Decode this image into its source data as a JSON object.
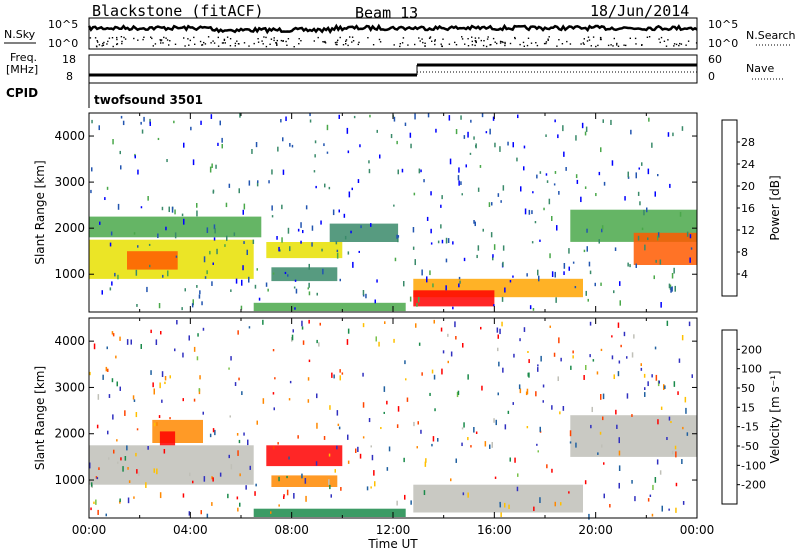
{
  "header": {
    "station": "Blackstone (fitACF)",
    "beam": "Beam 13",
    "date": "18/Jun/2014"
  },
  "noise_panel": {
    "left_label": "N.Sky",
    "right_label": "N.Search",
    "left_ticks": [
      "10^5",
      "10^0"
    ],
    "right_ticks": [
      "10^5",
      "10^0"
    ]
  },
  "freq_panel": {
    "left_label_line1": "Freq.",
    "left_label_line2": "[MHz]",
    "left_ticks": [
      "18",
      "8"
    ],
    "right_label": "Nave",
    "right_ticks": [
      "60",
      "0"
    ]
  },
  "cpid_panel": {
    "label": "CPID",
    "program": "twofsound 3501"
  },
  "colors": {
    "power_scale": [
      "#0000ff",
      "#2255b0",
      "#3a8a6a",
      "#4aa84a",
      "#e8e000",
      "#ffa500",
      "#ff5a00",
      "#ff0000"
    ],
    "velocity_scale": [
      "#3030c0",
      "#2060a0",
      "#1a8a4a",
      "#7ac24a",
      "#c0c0b8",
      "#ffc000",
      "#ff8800",
      "#ff4400",
      "#ff0000"
    ]
  },
  "chart_data": [
    {
      "type": "heatmap",
      "name": "power",
      "xlabel": "Time UT",
      "ylabel": "Slant Range [km]",
      "xlim": [
        0,
        24
      ],
      "ylim": [
        180,
        4500
      ],
      "y_ticks": [
        "1000",
        "2000",
        "3000",
        "4000"
      ],
      "colorbar_label": "Power [dB]",
      "colorbar_ticks": [
        "4",
        "8",
        "12",
        "16",
        "20",
        "24",
        "28"
      ],
      "bands": [
        {
          "t0": 0.0,
          "t1": 6.5,
          "r0": 900,
          "r1": 1750,
          "v": 16
        },
        {
          "t0": 1.5,
          "t1": 3.5,
          "r0": 1100,
          "r1": 1500,
          "v": 26
        },
        {
          "t0": 0.0,
          "t1": 6.8,
          "r0": 1800,
          "r1": 2250,
          "v": 12
        },
        {
          "t0": 7.0,
          "t1": 10.0,
          "r0": 1350,
          "r1": 1700,
          "v": 16
        },
        {
          "t0": 7.2,
          "t1": 9.8,
          "r0": 850,
          "r1": 1150,
          "v": 8
        },
        {
          "t0": 9.5,
          "t1": 12.2,
          "r0": 1700,
          "r1": 2100,
          "v": 10
        },
        {
          "t0": 12.8,
          "t1": 19.5,
          "r0": 500,
          "r1": 900,
          "v": 20
        },
        {
          "t0": 12.8,
          "t1": 16.0,
          "r0": 300,
          "r1": 650,
          "v": 28
        },
        {
          "t0": 6.5,
          "t1": 12.5,
          "r0": 200,
          "r1": 380,
          "v": 14
        },
        {
          "t0": 19.0,
          "t1": 24.0,
          "r0": 1700,
          "r1": 2400,
          "v": 12
        },
        {
          "t0": 21.5,
          "t1": 24.0,
          "r0": 1200,
          "r1": 1900,
          "v": 24
        }
      ]
    },
    {
      "type": "heatmap",
      "name": "velocity",
      "xlabel": "Time UT",
      "ylabel": "Slant Range [km]",
      "xlim": [
        0,
        24
      ],
      "ylim": [
        180,
        4500
      ],
      "y_ticks": [
        "1000",
        "2000",
        "3000",
        "4000"
      ],
      "x_ticks": [
        "00:00",
        "04:00",
        "08:00",
        "12:00",
        "16:00",
        "20:00",
        "00:00"
      ],
      "colorbar_label": "Velocity [m s⁻¹]",
      "colorbar_ticks": [
        "200",
        "100",
        "50",
        "15",
        "-15",
        "-50",
        "-100",
        "-200"
      ],
      "bands": [
        {
          "t0": 0.0,
          "t1": 6.5,
          "r0": 900,
          "r1": 1750,
          "v": 0
        },
        {
          "t0": 2.5,
          "t1": 4.5,
          "r0": 1800,
          "r1": 2300,
          "v": -80
        },
        {
          "t0": 2.8,
          "t1": 3.4,
          "r0": 1750,
          "r1": 2050,
          "v": -200
        },
        {
          "t0": 7.0,
          "t1": 10.0,
          "r0": 1300,
          "r1": 1750,
          "v": -160
        },
        {
          "t0": 7.2,
          "t1": 9.8,
          "r0": 850,
          "r1": 1100,
          "v": -60
        },
        {
          "t0": 12.8,
          "t1": 19.5,
          "r0": 300,
          "r1": 900,
          "v": 0
        },
        {
          "t0": 19.0,
          "t1": 24.0,
          "r0": 1500,
          "r1": 2400,
          "v": 0
        },
        {
          "t0": 6.5,
          "t1": 12.5,
          "r0": 200,
          "r1": 380,
          "v": 40
        }
      ]
    }
  ]
}
